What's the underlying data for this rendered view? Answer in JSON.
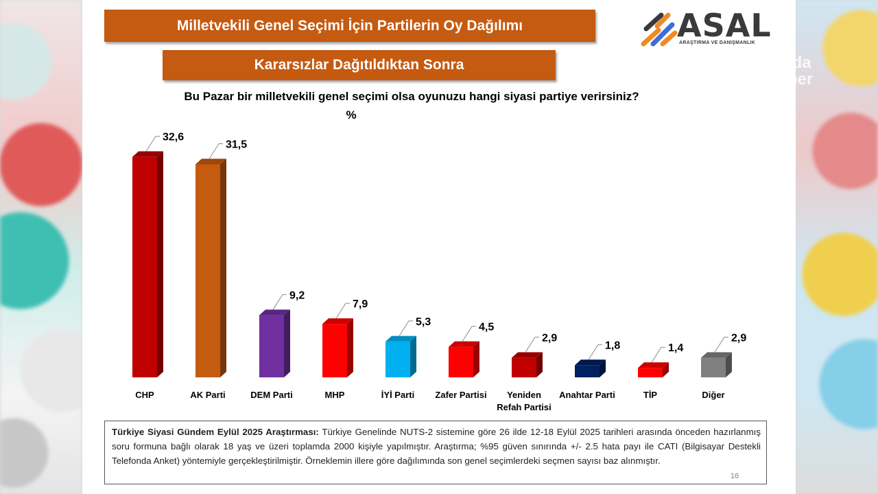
{
  "slide": {
    "title": "Milletvekili Genel Seçimi İçin Partilerin Oy Dağılımı",
    "subtitle": "Kararsızlar Dağıtıldıktan Sonra",
    "question": "Bu Pazar bir milletvekili genel seçimi olsa oyunuzu hangi siyasi partiye verirsiniz?",
    "unit": "%",
    "page_number": "16"
  },
  "logo": {
    "name": "ASAL",
    "tagline": "ARAŞTIRMA VE DANIŞMANLIK"
  },
  "background": {
    "right_text": "ida\nber"
  },
  "footer": {
    "lead": "Türkiye Siyasi Gündem Eylül 2025 Araştırması:",
    "text": " Türkiye Genelinde NUTS-2 sistemine göre 26 ilde 12-18 Eylül 2025 tarihleri arasında önceden hazırlanmış soru formuna bağlı olarak 18 yaş ve üzeri toplamda 2000 kişiyle yapılmıştır. Araştırma; %95 güven sınırında +/- 2.5 hata payı ile CATI (Bilgisayar Destekli Telefonda Anket) yöntemiyle gerçekleştirilmiştir. Örneklemin illere göre dağılımında son genel seçimlerdeki seçmen sayısı baz alınmıştır."
  },
  "chart_data": {
    "type": "bar",
    "categories": [
      "CHP",
      "AK Parti",
      "DEM Parti",
      "MHP",
      "İYİ Parti",
      "Zafer Partisi",
      "Yeniden Refah Partisi",
      "Anahtar Parti",
      "TİP",
      "Diğer"
    ],
    "values": [
      32.6,
      31.5,
      9.2,
      7.9,
      5.3,
      4.5,
      2.9,
      1.8,
      1.4,
      2.9
    ],
    "value_labels": [
      "32,6",
      "31,5",
      "9,2",
      "7,9",
      "5,3",
      "4,5",
      "2,9",
      "1,8",
      "1,4",
      "2,9"
    ],
    "colors": [
      "#c00000",
      "#c55a11",
      "#7030a0",
      "#ff0000",
      "#00b0f0",
      "#ff0000",
      "#c00000",
      "#002060",
      "#ff0000",
      "#808080"
    ],
    "title": "Milletvekili Genel Seçimi İçin Partilerin Oy Dağılımı",
    "ylabel": "%",
    "ylim": [
      0,
      35
    ],
    "grid": false,
    "legend": "none",
    "style": "3d-bar"
  }
}
